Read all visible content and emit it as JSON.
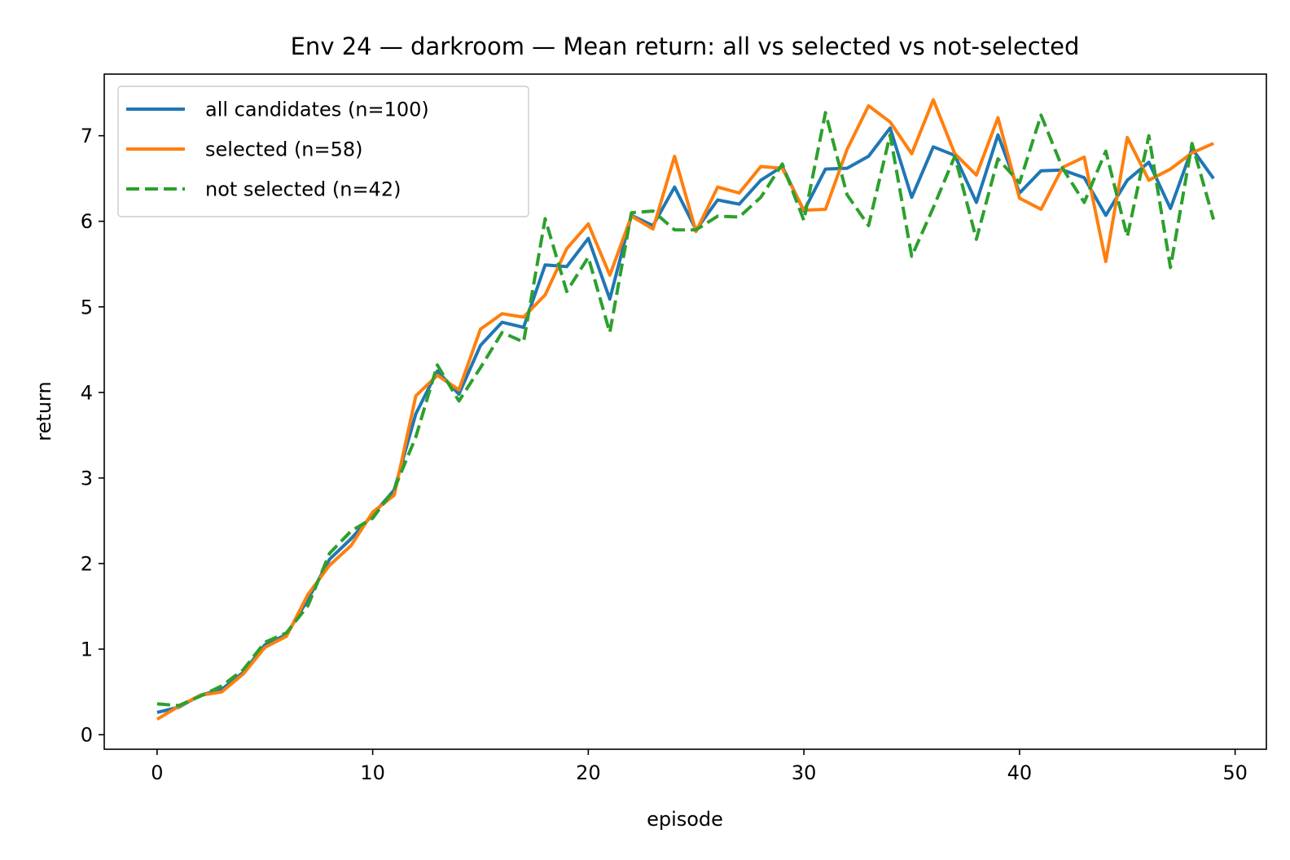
{
  "chart_data": {
    "type": "line",
    "title": "Env 24 — darkroom — Mean return: all vs selected vs not-selected",
    "xlabel": "episode",
    "ylabel": "return",
    "xlim": [
      -2.45,
      51.45
    ],
    "ylim": [
      -0.17,
      7.72
    ],
    "xticks": [
      0,
      10,
      20,
      30,
      40,
      50
    ],
    "yticks": [
      0,
      1,
      2,
      3,
      4,
      5,
      6,
      7
    ],
    "grid": false,
    "legend_position": "upper-left",
    "x": [
      0,
      1,
      2,
      3,
      4,
      5,
      6,
      7,
      8,
      9,
      10,
      11,
      12,
      13,
      14,
      15,
      16,
      17,
      18,
      19,
      20,
      21,
      22,
      23,
      24,
      25,
      26,
      27,
      28,
      29,
      30,
      31,
      32,
      33,
      34,
      35,
      36,
      37,
      38,
      39,
      40,
      41,
      42,
      43,
      44,
      45,
      46,
      47,
      48,
      49
    ],
    "series": [
      {
        "name": "all candidates (n=100)",
        "color": "#1f77b4",
        "dash": "solid",
        "values": [
          0.26,
          0.32,
          0.46,
          0.53,
          0.73,
          1.05,
          1.17,
          1.58,
          2.05,
          2.29,
          2.57,
          2.86,
          3.75,
          4.25,
          3.98,
          4.55,
          4.82,
          4.76,
          5.49,
          5.47,
          5.8,
          5.09,
          6.07,
          5.95,
          6.4,
          5.9,
          6.25,
          6.2,
          6.48,
          6.64,
          6.12,
          6.61,
          6.62,
          6.76,
          7.09,
          6.28,
          6.87,
          6.77,
          6.22,
          7.01,
          6.33,
          6.59,
          6.6,
          6.51,
          6.07,
          6.48,
          6.69,
          6.15,
          6.85,
          6.5
        ]
      },
      {
        "name": "selected (n=58)",
        "color": "#ff7f0e",
        "dash": "solid",
        "values": [
          0.18,
          0.33,
          0.46,
          0.5,
          0.71,
          1.02,
          1.15,
          1.64,
          1.98,
          2.21,
          2.6,
          2.8,
          3.96,
          4.2,
          4.03,
          4.74,
          4.92,
          4.88,
          5.14,
          5.68,
          5.97,
          5.37,
          6.06,
          5.91,
          6.76,
          5.88,
          6.4,
          6.33,
          6.64,
          6.62,
          6.13,
          6.14,
          6.84,
          7.35,
          7.16,
          6.79,
          7.42,
          6.79,
          6.54,
          7.21,
          6.27,
          6.14,
          6.63,
          6.75,
          5.53,
          6.98,
          6.48,
          6.61,
          6.8,
          6.91
        ]
      },
      {
        "name": "not selected (n=42)",
        "color": "#2ca02c",
        "dash": "dashed",
        "values": [
          0.36,
          0.34,
          0.45,
          0.57,
          0.76,
          1.08,
          1.19,
          1.51,
          2.12,
          2.38,
          2.53,
          2.87,
          3.48,
          4.32,
          3.9,
          4.29,
          4.7,
          4.59,
          6.03,
          5.18,
          5.58,
          4.7,
          6.1,
          6.12,
          5.9,
          5.9,
          6.06,
          6.05,
          6.28,
          6.67,
          6.01,
          7.27,
          6.31,
          5.95,
          7.01,
          5.59,
          6.16,
          6.76,
          5.79,
          6.73,
          6.45,
          7.24,
          6.62,
          6.22,
          6.82,
          5.82,
          7.0,
          5.46,
          6.91,
          6.02
        ]
      }
    ]
  }
}
